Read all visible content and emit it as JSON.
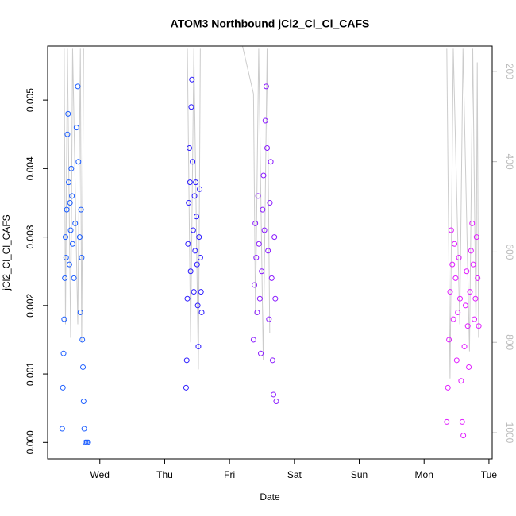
{
  "chart_data": {
    "type": "scatter",
    "title": "ATOM3 Northbound jCl2_Cl_Cl_CAFS",
    "x_label": "Date",
    "y_label": "jCl2_Cl_Cl_CAFS",
    "xlim": [
      0.195,
      7.05
    ],
    "xticks": [
      {
        "value": 1,
        "label": "Wed"
      },
      {
        "value": 2,
        "label": "Thu"
      },
      {
        "value": 3,
        "label": "Fri"
      },
      {
        "value": 4,
        "label": "Sat"
      },
      {
        "value": 5,
        "label": "Sun"
      },
      {
        "value": 6,
        "label": "Mon"
      },
      {
        "value": 7,
        "label": "Tue"
      }
    ],
    "ylim": [
      -0.00024,
      0.00579
    ],
    "yticks": [
      {
        "value": 0,
        "label": "0.000"
      },
      {
        "value": 0.001,
        "label": "0.001"
      },
      {
        "value": 0.002,
        "label": "0.002"
      },
      {
        "value": 0.003,
        "label": "0.003"
      },
      {
        "value": 0.004,
        "label": "0.004"
      },
      {
        "value": 0.005,
        "label": "0.005"
      }
    ],
    "y2lim": [
      1058,
      144
    ],
    "y2ticks": [
      200,
      400,
      600,
      800,
      1000
    ],
    "y2_color": "#bbbbbb",
    "series": [
      {
        "color": "#cccccc",
        "axis": "y2",
        "x": [
          0.45,
          0.47,
          0.5,
          0.55,
          0.58,
          0.66,
          0.7,
          0.72,
          0.75,
          null,
          2.35,
          2.4,
          2.45,
          2.52,
          2.55,
          null,
          3.2,
          3.37,
          3.4,
          3.45,
          3.52,
          3.58,
          3.62,
          null,
          6.35,
          6.4,
          6.45,
          6.55,
          6.6,
          6.7,
          6.75,
          6.8,
          6.82,
          6.84
        ],
        "values": [
          150,
          760,
          150,
          790,
          150,
          760,
          150,
          800,
          150,
          null,
          150,
          800,
          150,
          860,
          150,
          null,
          144,
          250,
          740,
          150,
          840,
          150,
          780,
          null,
          150,
          880,
          150,
          760,
          150,
          820,
          150,
          770,
          180,
          790
        ]
      },
      {
        "color": "#1a5cff",
        "x": [
          0.42,
          0.43,
          0.44,
          0.45,
          0.46,
          0.47,
          0.48,
          0.49,
          0.5,
          0.51,
          0.52,
          0.53,
          0.54,
          0.55,
          0.56,
          0.57,
          0.58,
          0.6,
          0.62,
          0.64,
          0.66,
          0.67,
          0.69,
          0.7,
          0.71,
          0.72,
          0.73,
          0.74,
          0.75,
          0.76,
          0.78,
          0.8,
          0.82
        ],
        "values": [
          0.0002,
          0.0008,
          0.0013,
          0.0018,
          0.0024,
          0.003,
          0.0027,
          0.0034,
          0.0045,
          0.0048,
          0.0038,
          0.0026,
          0.0035,
          0.0031,
          0.004,
          0.0036,
          0.0029,
          0.0024,
          0.0032,
          0.0046,
          0.0052,
          0.0041,
          0.003,
          0.0019,
          0.0034,
          0.0027,
          0.0015,
          0.0011,
          0.0006,
          0.0002,
          0,
          0,
          0
        ]
      },
      {
        "color": "#2b1aff",
        "x": [
          2.33,
          2.34,
          2.35,
          2.36,
          2.37,
          2.38,
          2.39,
          2.4,
          2.41,
          2.42,
          2.43,
          2.44,
          2.45,
          2.46,
          2.47,
          2.48,
          2.49,
          2.5,
          2.51,
          2.52,
          2.53,
          2.54,
          2.55,
          2.56,
          2.57
        ],
        "values": [
          0.0008,
          0.0012,
          0.0021,
          0.0029,
          0.0035,
          0.0043,
          0.0038,
          0.0025,
          0.0049,
          0.0053,
          0.0041,
          0.0031,
          0.0022,
          0.0036,
          0.0028,
          0.0038,
          0.0033,
          0.0026,
          0.002,
          0.0014,
          0.003,
          0.0037,
          0.0027,
          0.0022,
          0.0019
        ]
      },
      {
        "color": "#8a1aff",
        "x": [
          3.37,
          3.384,
          3.398,
          3.412,
          3.426,
          3.44,
          3.454,
          3.468,
          3.482,
          3.496,
          3.51,
          3.524,
          3.538,
          3.552,
          3.566,
          3.58,
          3.594,
          3.608,
          3.622,
          3.636,
          3.65,
          3.664,
          3.678,
          3.692,
          3.706,
          3.72
        ],
        "values": [
          0.0015,
          0.0023,
          0.0032,
          0.0027,
          0.0019,
          0.0036,
          0.0029,
          0.0021,
          0.0013,
          0.0025,
          0.0034,
          0.0039,
          0.0031,
          0.0047,
          0.0052,
          0.0043,
          0.0028,
          0.0018,
          0.0035,
          0.0041,
          0.0024,
          0.0012,
          0.0007,
          0.003,
          0.0021,
          0.0006
        ]
      },
      {
        "color": "#e01aff",
        "x": [
          6.35,
          6.367,
          6.384,
          6.401,
          6.418,
          6.435,
          6.452,
          6.469,
          6.486,
          6.503,
          6.52,
          6.537,
          6.554,
          6.571,
          6.588,
          6.605,
          6.622,
          6.639,
          6.656,
          6.673,
          6.69,
          6.707,
          6.724,
          6.741,
          6.758,
          6.775,
          6.792,
          6.809,
          6.826,
          6.843
        ],
        "values": [
          0.0003,
          0.0008,
          0.0015,
          0.0022,
          0.0031,
          0.0026,
          0.0018,
          0.0029,
          0.0024,
          0.0012,
          0.0019,
          0.0027,
          0.0021,
          0.0009,
          0.0003,
          0.0001,
          0.0014,
          0.002,
          0.0025,
          0.0017,
          0.0011,
          0.0022,
          0.0028,
          0.0032,
          0.0026,
          0.0018,
          0.0021,
          0.003,
          0.0024,
          0.0017
        ]
      }
    ]
  }
}
